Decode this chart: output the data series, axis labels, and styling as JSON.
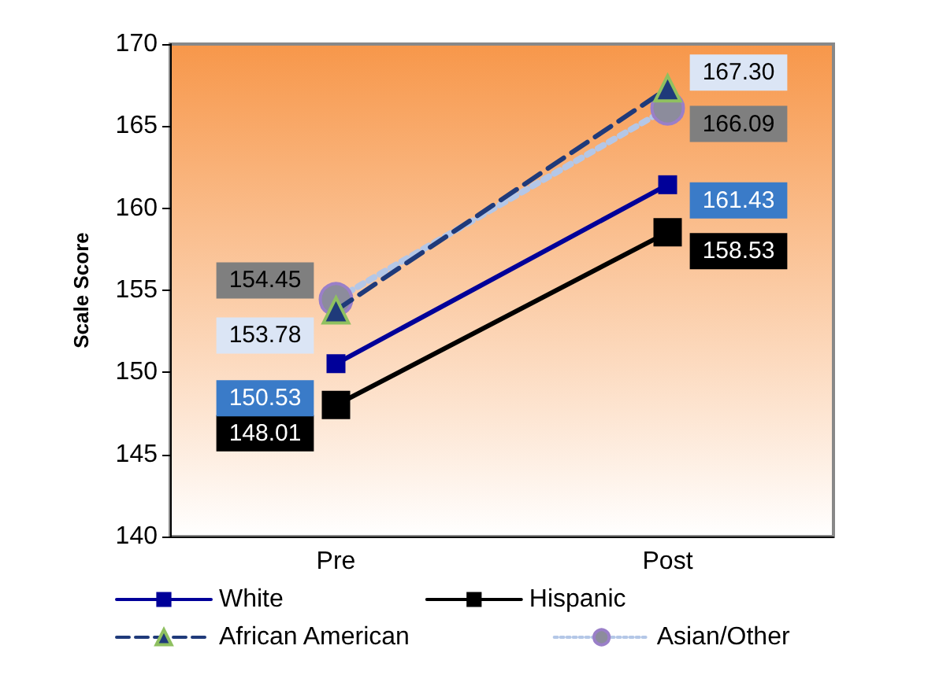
{
  "chart_data": {
    "type": "line",
    "ylabel": "Scale Score",
    "categories": [
      "Pre",
      "Post"
    ],
    "ylim": [
      140,
      170
    ],
    "yticks": [
      140,
      145,
      150,
      155,
      160,
      165,
      170
    ],
    "grid": false,
    "legend": "bottom",
    "series": [
      {
        "name": "White",
        "color": "#000099",
        "values": [
          150.53,
          161.43
        ],
        "value_labels": [
          "150.53",
          "161.43"
        ],
        "marker": "square",
        "line_style": "solid"
      },
      {
        "name": "Hispanic",
        "color": "#000000",
        "values": [
          148.01,
          158.53
        ],
        "value_labels": [
          "148.01",
          "158.53"
        ],
        "marker": "square",
        "line_style": "solid"
      },
      {
        "name": "African American",
        "color": "#1f3a7a",
        "values": [
          153.78,
          167.3
        ],
        "value_labels": [
          "153.78",
          "167.30"
        ],
        "marker": "triangle",
        "line_style": "dashed"
      },
      {
        "name": "Asian/Other",
        "color": "#b4c7e7",
        "values": [
          154.45,
          166.09
        ],
        "value_labels": [
          "154.45",
          "166.09"
        ],
        "marker": "circle",
        "line_style": "dotted"
      }
    ]
  }
}
